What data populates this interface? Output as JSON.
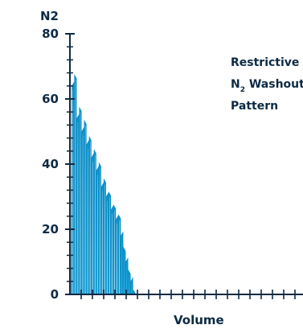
{
  "chart_data": {
    "type": "area",
    "ylabel": "N2",
    "xlabel": "Volume",
    "ylim": [
      0,
      80
    ],
    "yticks": [
      "0",
      "20",
      "40",
      "60",
      "80"
    ],
    "annotation": {
      "line1": "Restrictive",
      "line2_prefix": "N",
      "line2_sub": "2",
      "line2_suffix": " Washout",
      "line3": "Pattern"
    },
    "breaths": [
      {
        "trough": 0,
        "peak": 64
      },
      {
        "trough": 0,
        "peak": 67
      },
      {
        "trough": 0,
        "peak": 54
      },
      {
        "trough": 0,
        "peak": 57
      },
      {
        "trough": 0,
        "peak": 50
      },
      {
        "trough": 0,
        "peak": 53
      },
      {
        "trough": 0,
        "peak": 46
      },
      {
        "trough": 0,
        "peak": 48
      },
      {
        "trough": 0,
        "peak": 42
      },
      {
        "trough": 0,
        "peak": 44
      },
      {
        "trough": 0,
        "peak": 38
      },
      {
        "trough": 0,
        "peak": 40
      },
      {
        "trough": 0,
        "peak": 33
      },
      {
        "trough": 0,
        "peak": 35
      },
      {
        "trough": 0,
        "peak": 30
      },
      {
        "trough": 0,
        "peak": 31
      },
      {
        "trough": 0,
        "peak": 26
      },
      {
        "trough": 0,
        "peak": 27
      },
      {
        "trough": 0,
        "peak": 23
      },
      {
        "trough": 0,
        "peak": 24
      },
      {
        "trough": 0,
        "peak": 18
      },
      {
        "trough": 0,
        "peak": 14
      },
      {
        "trough": 0,
        "peak": 10
      },
      {
        "trough": 0,
        "peak": 7
      },
      {
        "trough": 0,
        "peak": 4
      },
      {
        "trough": 0,
        "peak": 1
      }
    ],
    "colors": {
      "axis": "#0d2a44",
      "line": "#0f8fc7",
      "fill": "#19a6dd"
    }
  }
}
